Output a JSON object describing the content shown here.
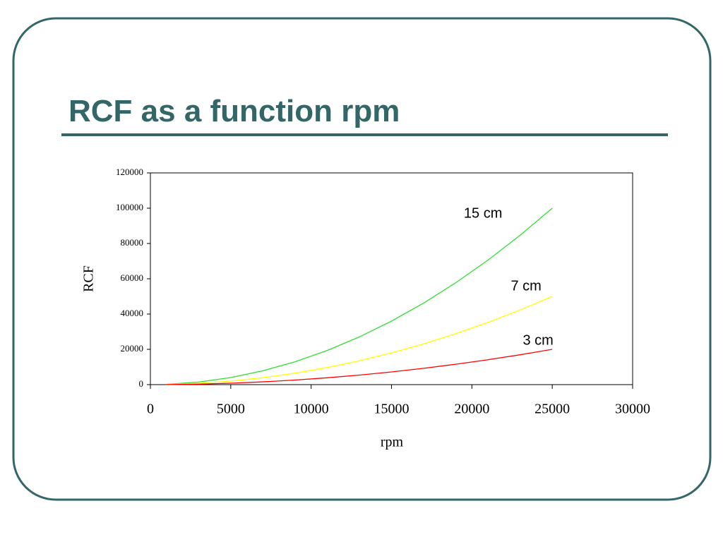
{
  "chart_data": {
    "type": "line",
    "title": "RCF as a function rpm",
    "x_label": "rpm",
    "y_label": "RCF",
    "x": [
      1000,
      3000,
      5000,
      7000,
      9000,
      11000,
      13000,
      15000,
      17000,
      19000,
      21000,
      23000,
      25000
    ],
    "series": [
      {
        "name": "15 cm",
        "color": "#33dd33",
        "values": [
          160,
          1440,
          4000,
          7840,
          12960,
          19360,
          27040,
          36000,
          46240,
          57760,
          70560,
          84640,
          100000
        ]
      },
      {
        "name": "7 cm",
        "color": "#ffff00",
        "values": [
          80,
          720,
          2000,
          3920,
          6480,
          9680,
          13520,
          18000,
          23120,
          28880,
          35280,
          42320,
          50000
        ]
      },
      {
        "name": "3 cm",
        "color": "#ff0000",
        "values": [
          32,
          288,
          800,
          1568,
          2592,
          3872,
          5408,
          7200,
          9248,
          11552,
          14112,
          16928,
          20000
        ]
      }
    ],
    "xlim": [
      0,
      30000
    ],
    "xticks": [
      0,
      5000,
      10000,
      15000,
      20000,
      25000,
      30000
    ],
    "ylim": [
      0,
      120000
    ],
    "yticks": [
      0,
      20000,
      40000,
      60000,
      80000,
      100000,
      120000
    ],
    "grid": false
  }
}
